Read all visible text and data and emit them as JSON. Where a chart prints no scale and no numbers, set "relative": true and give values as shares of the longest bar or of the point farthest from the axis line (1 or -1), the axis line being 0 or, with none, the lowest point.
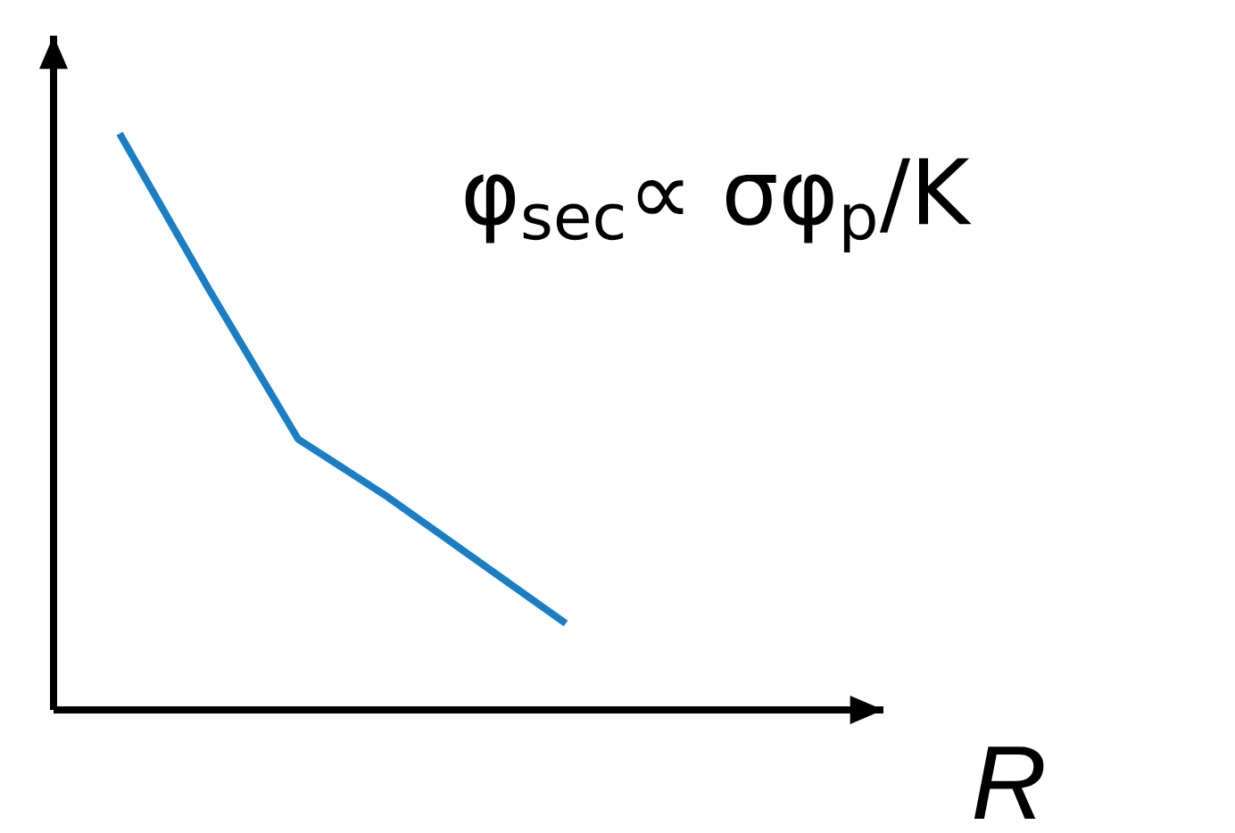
{
  "chart_data": {
    "type": "line",
    "relative": true,
    "xlabel": "R",
    "marker": "none",
    "annotations": [
      "φ$_{sec}$∝ σφ$_{p}$/K"
    ],
    "categories": [
      null,
      null,
      null,
      null,
      null,
      null
    ],
    "series": [
      {
        "color": "#1a7ec4",
        "values": [
          1,
          0.73,
          0.47,
          0.37,
          0.26,
          0.15
        ]
      }
    ]
  }
}
